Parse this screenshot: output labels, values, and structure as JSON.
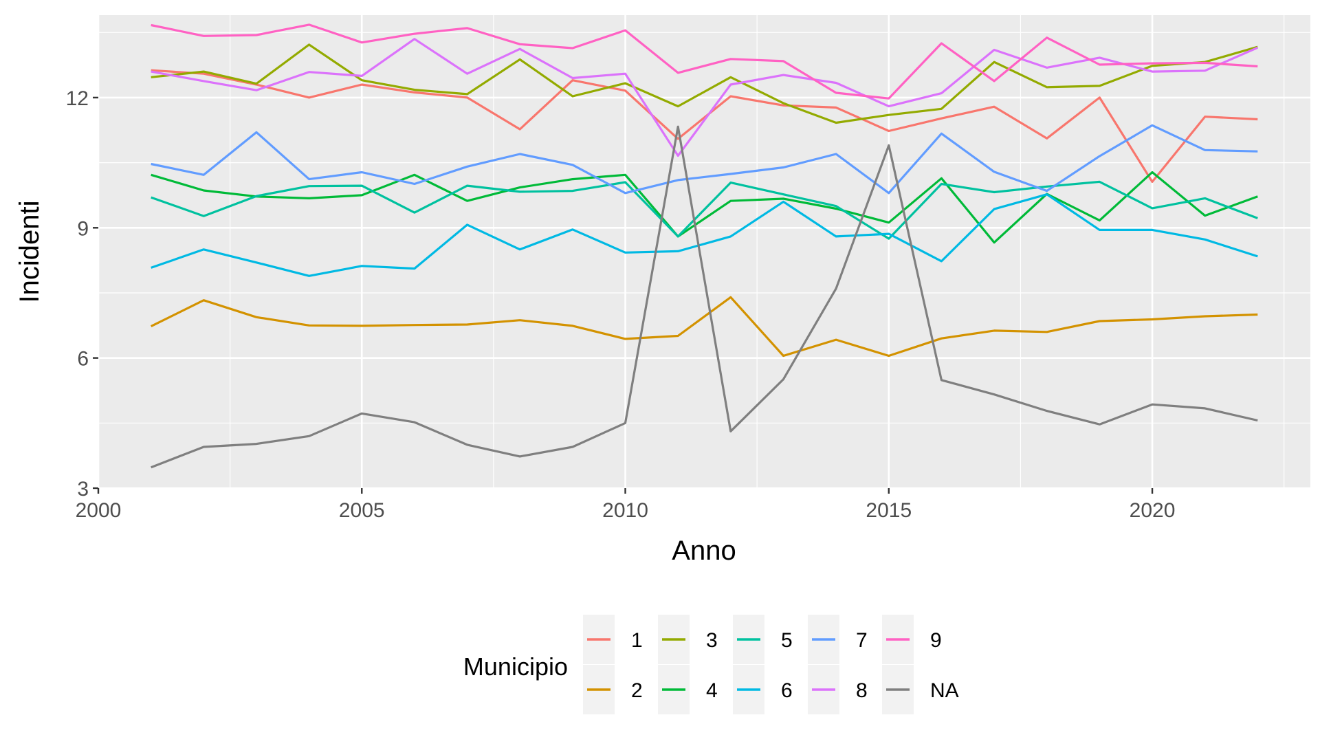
{
  "chart_data": {
    "type": "line",
    "xlabel": "Anno",
    "ylabel": "Incidenti",
    "xlim": [
      2000,
      2023
    ],
    "ylim": [
      3,
      13.9
    ],
    "x_ticks": [
      2000,
      2005,
      2010,
      2015,
      2020
    ],
    "y_ticks": [
      3,
      6,
      9,
      12
    ],
    "grid": true,
    "legend": {
      "title": "Municipio",
      "position": "bottom",
      "columns": 5
    },
    "x": [
      2001,
      2002,
      2003,
      2004,
      2005,
      2006,
      2007,
      2008,
      2009,
      2010,
      2011,
      2012,
      2013,
      2014,
      2015,
      2016,
      2017,
      2018,
      2019,
      2020,
      2021,
      2022
    ],
    "series": [
      {
        "name": "1",
        "color": "#F8766D",
        "values": [
          12.63,
          12.55,
          12.3,
          12.0,
          12.3,
          12.12,
          12.0,
          11.27,
          12.4,
          12.16,
          11.05,
          12.03,
          11.82,
          11.77,
          11.23,
          11.52,
          11.79,
          11.06,
          12.0,
          10.06,
          11.56,
          11.5
        ]
      },
      {
        "name": "2",
        "color": "#D39200",
        "values": [
          6.73,
          7.33,
          6.94,
          6.75,
          6.74,
          6.76,
          6.77,
          6.87,
          6.74,
          6.44,
          6.51,
          7.4,
          6.05,
          6.42,
          6.05,
          6.45,
          6.63,
          6.6,
          6.85,
          6.89,
          6.96,
          7.0
        ]
      },
      {
        "name": "3",
        "color": "#93AA00",
        "values": [
          12.47,
          12.6,
          12.32,
          13.22,
          12.4,
          12.18,
          12.08,
          12.88,
          12.03,
          12.33,
          11.8,
          12.47,
          11.87,
          11.42,
          11.6,
          11.74,
          12.82,
          12.24,
          12.27,
          12.73,
          12.82,
          13.17
        ]
      },
      {
        "name": "4",
        "color": "#00BA38",
        "values": [
          10.22,
          9.86,
          9.72,
          9.68,
          9.75,
          10.22,
          9.62,
          9.93,
          10.12,
          10.22,
          8.8,
          9.62,
          9.67,
          9.44,
          9.12,
          10.14,
          8.66,
          9.78,
          9.17,
          10.28,
          9.28,
          9.72
        ]
      },
      {
        "name": "5",
        "color": "#00C19F",
        "values": [
          9.7,
          9.27,
          9.73,
          9.96,
          9.97,
          9.35,
          9.97,
          9.83,
          9.85,
          10.05,
          8.8,
          10.04,
          9.77,
          9.5,
          8.75,
          10.01,
          9.82,
          9.95,
          10.06,
          9.45,
          9.68,
          9.22
        ]
      },
      {
        "name": "6",
        "color": "#00B9E3",
        "values": [
          8.08,
          8.5,
          8.2,
          7.89,
          8.12,
          8.06,
          9.07,
          8.5,
          8.96,
          8.43,
          8.46,
          8.8,
          9.6,
          8.8,
          8.86,
          8.23,
          9.43,
          9.77,
          8.95,
          8.95,
          8.73,
          8.34
        ]
      },
      {
        "name": "7",
        "color": "#619CFF",
        "values": [
          10.47,
          10.22,
          11.2,
          10.12,
          10.28,
          10.01,
          10.41,
          10.7,
          10.45,
          9.8,
          10.1,
          10.24,
          10.39,
          10.7,
          9.8,
          11.17,
          10.29,
          9.85,
          10.65,
          11.36,
          10.79,
          10.76
        ]
      },
      {
        "name": "8",
        "color": "#DB72FB",
        "values": [
          12.6,
          12.38,
          12.17,
          12.59,
          12.5,
          13.35,
          12.55,
          13.12,
          12.45,
          12.55,
          10.66,
          12.3,
          12.52,
          12.34,
          11.8,
          12.1,
          13.1,
          12.69,
          12.92,
          12.6,
          12.62,
          13.15
        ]
      },
      {
        "name": "9",
        "color": "#FF61C3",
        "values": [
          13.67,
          13.42,
          13.44,
          13.68,
          13.27,
          13.47,
          13.6,
          13.23,
          13.14,
          13.55,
          12.57,
          12.89,
          12.84,
          12.11,
          11.98,
          13.25,
          12.38,
          13.38,
          12.76,
          12.79,
          12.8,
          12.72
        ]
      },
      {
        "name": "NA",
        "color": "#7F7F7F",
        "values": [
          3.48,
          3.95,
          4.02,
          4.2,
          4.72,
          4.52,
          4.0,
          3.73,
          3.95,
          4.5,
          11.33,
          4.31,
          5.51,
          7.6,
          10.9,
          5.49,
          5.16,
          4.78,
          4.47,
          4.93,
          4.84,
          4.56
        ]
      }
    ]
  }
}
